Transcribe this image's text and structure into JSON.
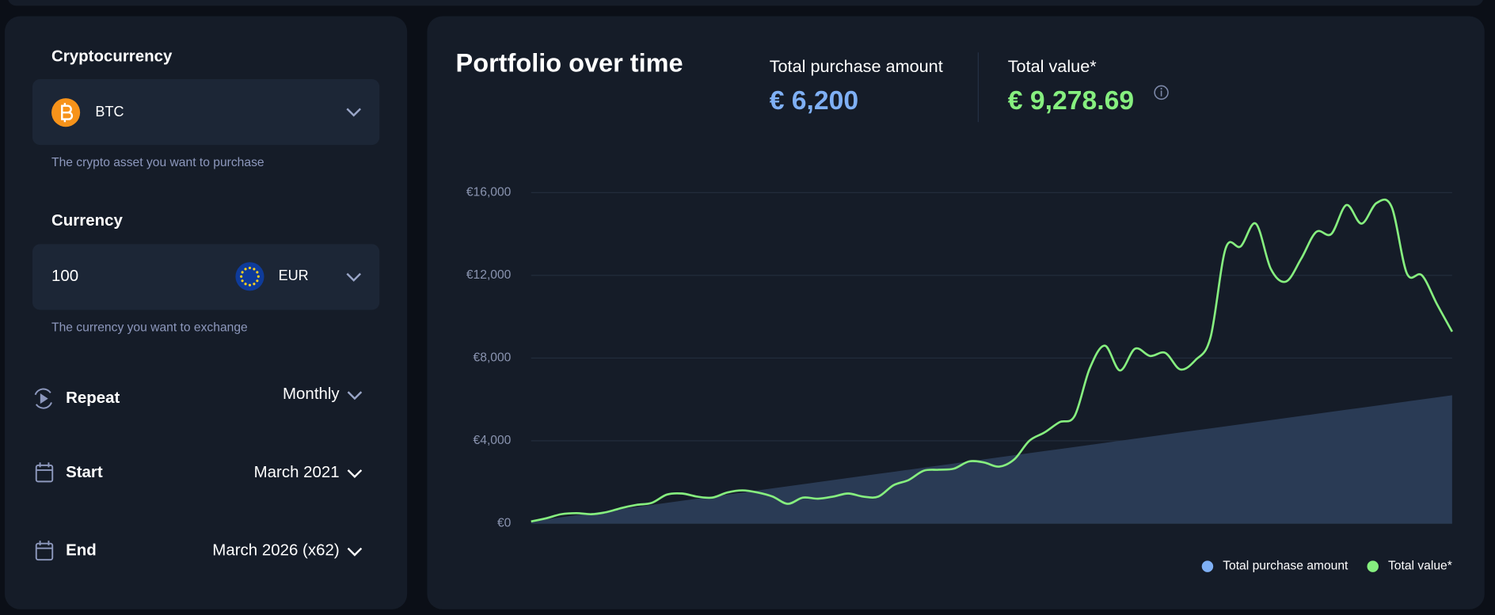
{
  "form": {
    "crypto_label": "Cryptocurrency",
    "crypto_value": "BTC",
    "crypto_help": "The crypto asset you want to purchase",
    "currency_label": "Currency",
    "amount": "100",
    "currency_value": "EUR",
    "currency_help": "The currency you want to exchange",
    "repeat_label": "Repeat",
    "repeat_value": "Monthly",
    "start_label": "Start",
    "start_value": "March 2021",
    "end_label": "End",
    "end_value": "March 2026 (x62)"
  },
  "summary": {
    "title": "Portfolio over time",
    "purchase_label": "Total purchase amount",
    "purchase_value": "€ 6,200",
    "value_label": "Total value*",
    "value_value": "€ 9,278.69"
  },
  "chart_data": {
    "type": "line",
    "series": [
      {
        "name": "Total purchase amount",
        "kind": "area",
        "color": "#7fb0f5",
        "fill": "#2a3b55",
        "values": [
          100,
          200,
          300,
          400,
          500,
          600,
          700,
          800,
          900,
          1000,
          1100,
          1200,
          1300,
          1400,
          1500,
          1600,
          1700,
          1800,
          1900,
          2000,
          2100,
          2200,
          2300,
          2400,
          2500,
          2600,
          2700,
          2800,
          2900,
          3000,
          3100,
          3200,
          3300,
          3400,
          3500,
          3600,
          3700,
          3800,
          3900,
          4000,
          4100,
          4200,
          4300,
          4400,
          4500,
          4600,
          4700,
          4800,
          4900,
          5000,
          5100,
          5200,
          5300,
          5400,
          5500,
          5600,
          5700,
          5800,
          5900,
          6000,
          6100,
          6200
        ]
      },
      {
        "name": "Total value*",
        "kind": "line",
        "color": "#86ef7f",
        "values": [
          100,
          250,
          450,
          500,
          450,
          550,
          750,
          900,
          1000,
          1400,
          1450,
          1300,
          1250,
          1500,
          1600,
          1500,
          1300,
          950,
          1250,
          1200,
          1300,
          1450,
          1300,
          1300,
          1850,
          2100,
          2550,
          2600,
          2650,
          3000,
          2950,
          2750,
          3100,
          4000,
          4400,
          4900,
          5200,
          7500,
          8600,
          7400,
          8450,
          8100,
          8250,
          7450,
          7900,
          9000,
          13300,
          13400,
          14500,
          12300,
          11700,
          12800,
          14100,
          14000,
          15400,
          14500,
          15500,
          15300,
          12100,
          12000,
          10600,
          9278.69
        ]
      }
    ],
    "ylim": [
      0,
      16000
    ],
    "yticks": [
      {
        "value": 0,
        "label": "€0"
      },
      {
        "value": 4000,
        "label": "€4,000"
      },
      {
        "value": 8000,
        "label": "€8,000"
      },
      {
        "value": 12000,
        "label": "€12,000"
      },
      {
        "value": 16000,
        "label": "€16,000"
      }
    ],
    "grid": true,
    "legend": "bottom-right"
  }
}
